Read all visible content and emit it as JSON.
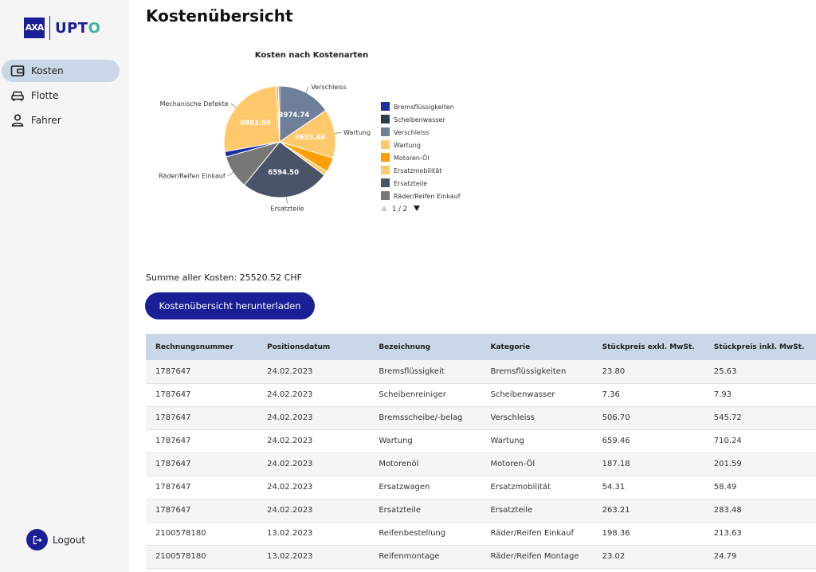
{
  "brand": {
    "axa": "AXA",
    "upto_prefix": "UPT",
    "upto_suffix": "O"
  },
  "nav": {
    "items": [
      {
        "label": "Kosten",
        "icon": "wallet-icon",
        "active": true
      },
      {
        "label": "Flotte",
        "icon": "car-icon",
        "active": false
      },
      {
        "label": "Fahrer",
        "icon": "person-icon",
        "active": false
      }
    ],
    "logout_label": "Logout",
    "logout_icon": "logout-icon"
  },
  "page": {
    "title": "Kostenübersicht"
  },
  "chart_data": {
    "type": "pie",
    "title": "Kosten nach Kostenarten",
    "unit": "CHF",
    "slices": [
      {
        "label": "Verschleiss",
        "value": 3974.74,
        "color": "#6e7f99",
        "show_value": true
      },
      {
        "label": "Wartung",
        "value": 3653.46,
        "color": "#ffc96b",
        "show_value": true
      },
      {
        "label": "Motoren-Öl",
        "value": 1100,
        "color": "#ff9f00",
        "show_value": false
      },
      {
        "label": "Ersatzmobilität",
        "value": 320,
        "color": "#ffc96b",
        "show_value": false
      },
      {
        "label": "Ersatzteile",
        "value": 6594.5,
        "color": "#4a5468",
        "show_value": true
      },
      {
        "label": "Räder/Reifen Einkauf",
        "value": 2500,
        "color": "#777777",
        "show_value": false
      },
      {
        "label": "Bremsflüssigkeiten",
        "value": 400,
        "color": "#1a2ea0",
        "show_value": false
      },
      {
        "label": "Mechanische Defekte",
        "value": 6891.59,
        "color": "#ffc96b",
        "show_value": true
      },
      {
        "label": "",
        "value": 150,
        "color": "#ff9f00",
        "show_value": false
      },
      {
        "label": "Scheibenwasser",
        "value": 100,
        "color": "#2a3f4a",
        "show_value": false
      }
    ],
    "callouts": [
      "Verschleiss",
      "Wartung",
      "Ersatzteile",
      "Räder/Reifen Einkauf",
      "Mechanische Defekte"
    ],
    "legend": {
      "placement": "right",
      "entries": [
        {
          "label": "Bremsflüssigkeiten",
          "color": "#1a2ea0"
        },
        {
          "label": "Scheibenwasser",
          "color": "#2a3f4a"
        },
        {
          "label": "Verschleiss",
          "color": "#6e7f99"
        },
        {
          "label": "Wartung",
          "color": "#ffc96b"
        },
        {
          "label": "Motoren-Öl",
          "color": "#ff9f00"
        },
        {
          "label": "Ersatzmobilität",
          "color": "#ffc96b"
        },
        {
          "label": "Ersatzteile",
          "color": "#4a5468"
        },
        {
          "label": "Räder/Reifen Einkauf",
          "color": "#777777"
        }
      ],
      "pagination": "1 / 2"
    }
  },
  "summary": {
    "text": "Summe aller Kosten: 25520.52 CHF"
  },
  "download_button": {
    "label": "Kostenübersicht herunterladen"
  },
  "table": {
    "columns": [
      "Rechnungsnummer",
      "Positionsdatum",
      "Bezeichnung",
      "Kategorie",
      "Stückpreis exkl. MwSt.",
      "Stückpreis inkl. MwSt."
    ],
    "rows": [
      [
        "1787647",
        "24.02.2023",
        "Bremsflüssigkeit",
        "Bremsflüssigkeiten",
        "23.80",
        "25.63"
      ],
      [
        "1787647",
        "24.02.2023",
        "Scheibenreiniger",
        "Scheibenwasser",
        "7.36",
        "7.93"
      ],
      [
        "1787647",
        "24.02.2023",
        "Bremsscheibe/-belag",
        "Verschleiss",
        "506.70",
        "545.72"
      ],
      [
        "1787647",
        "24.02.2023",
        "Wartung",
        "Wartung",
        "659.46",
        "710.24"
      ],
      [
        "1787647",
        "24.02.2023",
        "Motorenöl",
        "Motoren-Öl",
        "187.18",
        "201.59"
      ],
      [
        "1787647",
        "24.02.2023",
        "Ersatzwagen",
        "Ersatzmobilität",
        "54.31",
        "58.49"
      ],
      [
        "1787647",
        "24.02.2023",
        "Ersatzteile",
        "Ersatzteile",
        "263.21",
        "283.48"
      ],
      [
        "2100578180",
        "13.02.2023",
        "Reifenbestellung",
        "Räder/Reifen Einkauf",
        "198.36",
        "213.63"
      ],
      [
        "2100578180",
        "13.02.2023",
        "Reifenmontage",
        "Räder/Reifen Montage",
        "23.02",
        "24.79"
      ]
    ]
  },
  "colors": {
    "brand": "#1a1f96",
    "accent": "#3fb4a5",
    "header_bg": "#c9d7e6",
    "sidebar_bg": "#f5f5f5"
  }
}
